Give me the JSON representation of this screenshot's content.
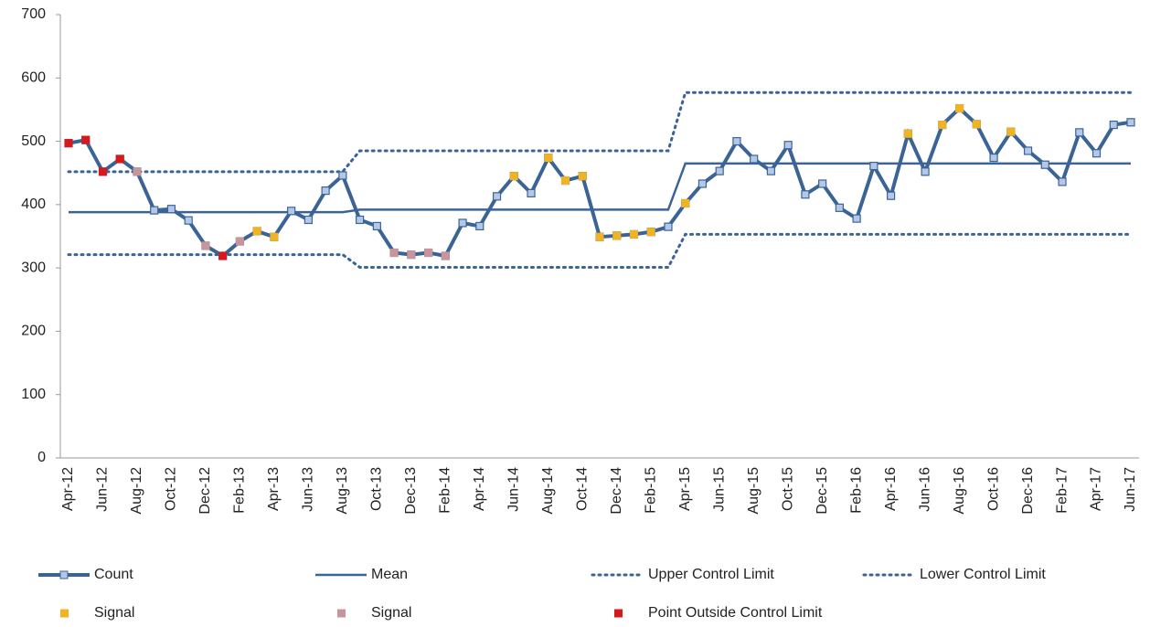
{
  "chart_data": {
    "type": "line",
    "categories": [
      "Apr-12",
      null,
      "Jun-12",
      null,
      "Aug-12",
      null,
      "Oct-12",
      null,
      "Dec-12",
      null,
      "Feb-13",
      null,
      "Apr-13",
      null,
      "Jun-13",
      null,
      "Aug-13",
      null,
      "Oct-13",
      null,
      "Dec-13",
      null,
      "Feb-14",
      null,
      "Apr-14",
      null,
      "Jun-14",
      null,
      "Aug-14",
      null,
      "Oct-14",
      null,
      "Dec-14",
      null,
      "Feb-15",
      null,
      "Apr-15",
      null,
      "Jun-15",
      null,
      "Aug-15",
      null,
      "Oct-15",
      null,
      "Dec-15",
      null,
      "Feb-16",
      null,
      "Apr-16",
      null,
      "Jun-16",
      null,
      "Aug-16",
      null,
      "Oct-16",
      null,
      "Dec-16",
      null,
      "Feb-17",
      null,
      "Apr-17",
      null,
      "Jun-17"
    ],
    "ylim": [
      0,
      700
    ],
    "yticks": [
      0,
      100,
      200,
      300,
      400,
      500,
      600,
      700
    ],
    "grid": false,
    "series": [
      {
        "name": "Count",
        "style": "line-marker",
        "color": "#3b6496",
        "marker_color": "#b4c7e7",
        "values": [
          497,
          502,
          452,
          472,
          452,
          391,
          393,
          375,
          335,
          319,
          342,
          358,
          349,
          390,
          376,
          422,
          446,
          376,
          366,
          324,
          321,
          324,
          319,
          371,
          366,
          413,
          445,
          418,
          474,
          438,
          445,
          349,
          351,
          353,
          357,
          365,
          402,
          433,
          453,
          500,
          472,
          453,
          494,
          416,
          433,
          395,
          378,
          461,
          414,
          512,
          452,
          526,
          552,
          527,
          474,
          515,
          485,
          463,
          436,
          514,
          481,
          526,
          530
        ]
      },
      {
        "name": "Mean",
        "style": "line",
        "color": "#3b6496",
        "values": [
          388,
          388,
          388,
          388,
          388,
          388,
          388,
          388,
          388,
          388,
          388,
          388,
          388,
          388,
          388,
          388,
          388,
          392,
          392,
          392,
          392,
          392,
          392,
          392,
          392,
          392,
          392,
          392,
          392,
          392,
          392,
          392,
          392,
          392,
          392,
          392,
          465,
          465,
          465,
          465,
          465,
          465,
          465,
          465,
          465,
          465,
          465,
          465,
          465,
          465,
          465,
          465,
          465,
          465,
          465,
          465,
          465,
          465,
          465,
          465,
          465,
          465,
          465
        ]
      },
      {
        "name": "Upper Control Limit",
        "style": "dotted",
        "color": "#3b6496",
        "values": [
          452,
          452,
          452,
          452,
          452,
          452,
          452,
          452,
          452,
          452,
          452,
          452,
          452,
          452,
          452,
          452,
          452,
          485,
          485,
          485,
          485,
          485,
          485,
          485,
          485,
          485,
          485,
          485,
          485,
          485,
          485,
          485,
          485,
          485,
          485,
          485,
          577,
          577,
          577,
          577,
          577,
          577,
          577,
          577,
          577,
          577,
          577,
          577,
          577,
          577,
          577,
          577,
          577,
          577,
          577,
          577,
          577,
          577,
          577,
          577,
          577,
          577,
          577
        ]
      },
      {
        "name": "Lower Control Limit",
        "style": "dotted",
        "color": "#3b6496",
        "values": [
          321,
          321,
          321,
          321,
          321,
          321,
          321,
          321,
          321,
          321,
          321,
          321,
          321,
          321,
          321,
          321,
          321,
          301,
          301,
          301,
          301,
          301,
          301,
          301,
          301,
          301,
          301,
          301,
          301,
          301,
          301,
          301,
          301,
          301,
          301,
          301,
          353,
          353,
          353,
          353,
          353,
          353,
          353,
          353,
          353,
          353,
          353,
          353,
          353,
          353,
          353,
          353,
          353,
          353,
          353,
          353,
          353,
          353,
          353,
          353,
          353,
          353,
          353
        ]
      },
      {
        "name": "Signal",
        "style": "marker",
        "color": "#f0b323",
        "values": [
          null,
          null,
          null,
          null,
          null,
          null,
          null,
          null,
          null,
          null,
          null,
          358,
          349,
          null,
          null,
          null,
          null,
          null,
          null,
          null,
          null,
          null,
          null,
          null,
          null,
          null,
          445,
          null,
          474,
          438,
          445,
          349,
          351,
          353,
          357,
          null,
          402,
          null,
          null,
          null,
          null,
          null,
          null,
          null,
          null,
          null,
          null,
          null,
          null,
          512,
          null,
          526,
          552,
          527,
          null,
          515,
          null,
          null,
          null,
          null,
          null,
          null,
          null
        ]
      },
      {
        "name": "Signal",
        "style": "marker",
        "color": "#c9959c",
        "values": [
          null,
          null,
          null,
          null,
          452,
          null,
          null,
          null,
          335,
          null,
          342,
          null,
          null,
          null,
          null,
          null,
          null,
          null,
          null,
          324,
          321,
          324,
          319,
          null,
          null,
          null,
          null,
          null,
          null,
          null,
          null,
          null,
          null,
          null,
          null,
          null,
          null,
          null,
          null,
          null,
          null,
          null,
          null,
          null,
          null,
          null,
          null,
          null,
          null,
          null,
          null,
          null,
          null,
          null,
          null,
          null,
          null,
          null,
          null,
          null,
          null,
          null,
          null
        ]
      },
      {
        "name": "Point Outside Control Limit",
        "style": "marker",
        "color": "#d7191c",
        "values": [
          497,
          502,
          452,
          472,
          null,
          null,
          null,
          null,
          null,
          319,
          null,
          null,
          null,
          null,
          null,
          null,
          null,
          null,
          null,
          null,
          null,
          null,
          null,
          null,
          null,
          null,
          null,
          null,
          null,
          null,
          null,
          null,
          null,
          null,
          null,
          null,
          null,
          null,
          null,
          null,
          null,
          null,
          null,
          null,
          null,
          null,
          null,
          null,
          null,
          null,
          null,
          null,
          null,
          null,
          null,
          null,
          null,
          null,
          null,
          null,
          null,
          null,
          null
        ]
      }
    ]
  }
}
